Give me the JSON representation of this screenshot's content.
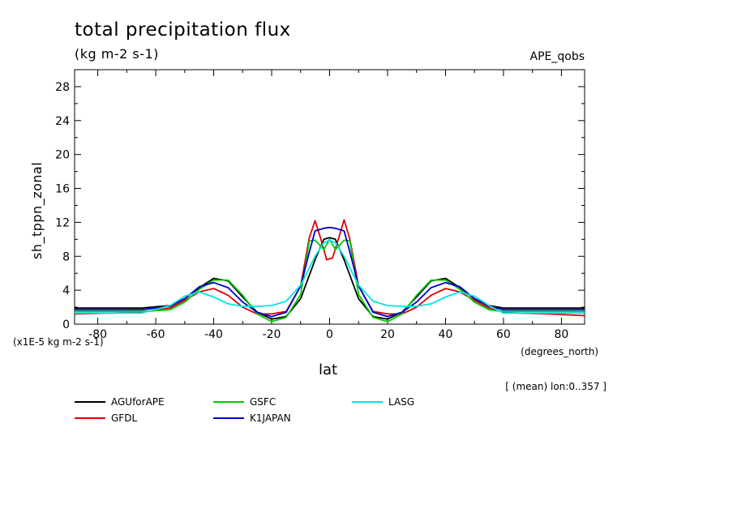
{
  "chart_data": {
    "type": "line",
    "title": "total precipitation flux",
    "units": "(kg m-2 s-1)",
    "dataset": "APE_qobs",
    "ylabel": "sh_tppn_zonal",
    "yscale_note": "(x1E-5 kg m-2 s-1)",
    "xlabel": "lat",
    "xunits": "(degrees_north)",
    "mean_note": "[ (mean) lon:0..357 ]",
    "xlim": [
      -88,
      88
    ],
    "ylim": [
      0,
      30
    ],
    "xticks": [
      -80,
      -60,
      -40,
      -20,
      0,
      20,
      40,
      60,
      80
    ],
    "yticks": [
      0,
      4,
      8,
      12,
      16,
      20,
      24,
      28
    ],
    "xtick_labels": [
      "-80",
      "-60",
      "-40",
      "-20",
      "0",
      "20",
      "40",
      "60",
      "80"
    ],
    "ytick_labels": [
      "0",
      "4",
      "8",
      "12",
      "16",
      "20",
      "24",
      "28"
    ],
    "series": [
      {
        "name": "AGUforAPE",
        "color": "#000000",
        "x": [
          -88,
          -75,
          -65,
          -55,
          -50,
          -45,
          -40,
          -35,
          -30,
          -25,
          -20,
          -15,
          -10,
          -5,
          -2,
          0,
          2,
          5,
          10,
          15,
          20,
          25,
          30,
          35,
          40,
          45,
          50,
          55,
          60,
          65,
          75,
          88
        ],
        "y": [
          1.9,
          1.9,
          1.9,
          2.2,
          3.0,
          4.3,
          5.4,
          5.1,
          3.2,
          1.4,
          0.6,
          0.9,
          3.0,
          7.6,
          10.0,
          10.2,
          10.0,
          7.6,
          3.0,
          0.9,
          0.6,
          1.4,
          3.2,
          5.1,
          5.4,
          4.3,
          3.0,
          2.2,
          1.9,
          1.9,
          1.9,
          1.9
        ]
      },
      {
        "name": "GFDL",
        "color": "#e00000",
        "x": [
          -88,
          -75,
          -65,
          -55,
          -50,
          -45,
          -40,
          -35,
          -30,
          -25,
          -20,
          -15,
          -10,
          -7,
          -5,
          -3,
          -1,
          1,
          3,
          5,
          7,
          10,
          15,
          20,
          25,
          30,
          35,
          40,
          45,
          50,
          55,
          60,
          65,
          75,
          88
        ],
        "y": [
          1.2,
          1.3,
          1.4,
          1.9,
          2.8,
          3.8,
          4.2,
          3.4,
          2.0,
          1.2,
          1.2,
          1.5,
          4.5,
          10.2,
          12.2,
          10.0,
          7.6,
          7.8,
          10.0,
          12.3,
          10.0,
          4.5,
          1.5,
          1.2,
          1.2,
          2.0,
          3.4,
          4.2,
          3.8,
          2.8,
          1.9,
          1.4,
          1.3,
          1.2,
          1.0
        ]
      },
      {
        "name": "GSFC",
        "color": "#00cc00",
        "x": [
          -88,
          -75,
          -65,
          -55,
          -50,
          -45,
          -40,
          -35,
          -30,
          -25,
          -20,
          -15,
          -10,
          -7,
          -5,
          -2,
          0,
          2,
          5,
          7,
          10,
          15,
          20,
          25,
          30,
          35,
          40,
          45,
          50,
          55,
          60,
          65,
          75,
          88
        ],
        "y": [
          1.5,
          1.5,
          1.5,
          1.7,
          2.6,
          4.1,
          5.2,
          5.2,
          3.4,
          1.2,
          0.3,
          0.8,
          3.5,
          9.8,
          9.9,
          8.8,
          10.0,
          8.8,
          9.9,
          9.8,
          3.5,
          0.8,
          0.3,
          1.2,
          3.4,
          5.2,
          5.2,
          4.1,
          2.6,
          1.7,
          1.5,
          1.5,
          1.5,
          1.5
        ]
      },
      {
        "name": "K1JAPAN",
        "color": "#0000cc",
        "x": [
          -88,
          -75,
          -65,
          -55,
          -50,
          -45,
          -40,
          -35,
          -30,
          -25,
          -20,
          -15,
          -10,
          -7,
          -5,
          -2,
          0,
          2,
          5,
          7,
          10,
          15,
          20,
          25,
          30,
          35,
          40,
          45,
          50,
          55,
          60,
          65,
          75,
          88
        ],
        "y": [
          1.7,
          1.7,
          1.7,
          2.1,
          3.0,
          4.4,
          4.9,
          4.3,
          2.6,
          1.4,
          0.9,
          1.4,
          4.5,
          8.5,
          11.0,
          11.3,
          11.4,
          11.3,
          11.0,
          8.5,
          4.5,
          1.4,
          0.9,
          1.4,
          2.6,
          4.3,
          4.9,
          4.4,
          3.0,
          2.1,
          1.7,
          1.7,
          1.7,
          1.7
        ]
      },
      {
        "name": "LASG",
        "color": "#00e5e5",
        "x": [
          -88,
          -75,
          -65,
          -55,
          -50,
          -45,
          -40,
          -35,
          -30,
          -25,
          -20,
          -15,
          -10,
          -5,
          -2,
          0,
          2,
          5,
          10,
          15,
          20,
          25,
          30,
          35,
          40,
          45,
          50,
          55,
          60,
          65,
          75,
          88
        ],
        "y": [
          1.3,
          1.3,
          1.3,
          2.2,
          3.3,
          3.8,
          3.2,
          2.4,
          2.1,
          2.1,
          2.2,
          2.7,
          4.6,
          8.0,
          9.6,
          9.9,
          9.6,
          8.0,
          4.6,
          2.7,
          2.2,
          2.1,
          2.1,
          2.4,
          3.2,
          3.8,
          3.3,
          2.2,
          1.3,
          1.3,
          1.3,
          1.3
        ]
      }
    ]
  }
}
